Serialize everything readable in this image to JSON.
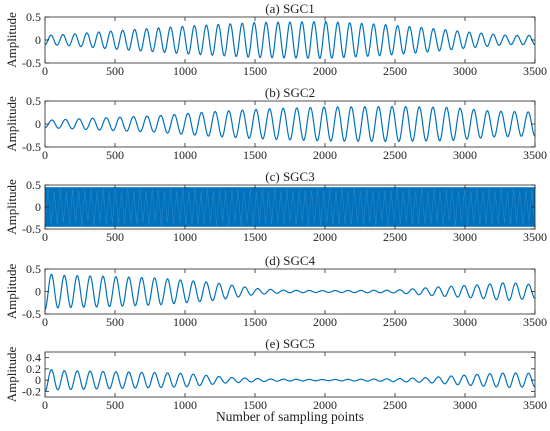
{
  "xlabel": "Number of sampling points",
  "colors": {
    "signal": "#0072BD",
    "axis": "#262626"
  },
  "chart_data": [
    {
      "type": "line",
      "title": "(a) SGC1",
      "ylabel": "Amplitude",
      "xlim": [
        0,
        3500
      ],
      "ylim": [
        -0.5,
        0.5
      ],
      "xticks": [
        "0",
        "500",
        "1000",
        "1500",
        "2000",
        "2500",
        "3000",
        "3500"
      ],
      "yticks": [
        "-0.5",
        "0",
        "0.5"
      ],
      "ytick_values": [
        -0.5,
        0,
        0.5
      ],
      "series": [
        {
          "cycles": 41,
          "envelope": {
            "x": [
              0,
              150,
              500,
              1000,
              1500,
              2000,
              2400,
              2700,
              3000,
              3300,
              3500
            ],
            "y": [
              0.1,
              0.12,
              0.2,
              0.3,
              0.38,
              0.4,
              0.34,
              0.27,
              0.18,
              0.1,
              0.1
            ]
          }
        }
      ]
    },
    {
      "type": "line",
      "title": "(b) SGC2",
      "ylabel": "Amplitude",
      "xlim": [
        0,
        3500
      ],
      "ylim": [
        -0.5,
        0.5
      ],
      "xticks": [
        "0",
        "500",
        "1000",
        "1500",
        "2000",
        "2500",
        "3000",
        "3500"
      ],
      "yticks": [
        "-0.5",
        "0",
        "0.5"
      ],
      "ytick_values": [
        -0.5,
        0,
        0.5
      ],
      "series": [
        {
          "cycles": 36,
          "envelope": {
            "x": [
              0,
              300,
              800,
              1200,
              1600,
              2000,
              2500,
              2900,
              3200,
              3500
            ],
            "y": [
              0.08,
              0.12,
              0.18,
              0.27,
              0.33,
              0.37,
              0.38,
              0.36,
              0.28,
              0.26
            ]
          }
        }
      ]
    },
    {
      "type": "line",
      "title": "(c) SGC3",
      "ylabel": "Amplitude",
      "xlim": [
        0,
        3500
      ],
      "ylim": [
        -0.5,
        0.5
      ],
      "xticks": [
        "0",
        "500",
        "1000",
        "1500",
        "2000",
        "2500",
        "3000",
        "3500"
      ],
      "yticks": [
        "-0.5",
        "0",
        "0.5"
      ],
      "ytick_values": [
        -0.5,
        0,
        0.5
      ],
      "series": [
        {
          "dense": true,
          "amplitude": 0.45
        }
      ]
    },
    {
      "type": "line",
      "title": "(d) SGC4",
      "ylabel": "Amplitude",
      "xlim": [
        0,
        3500
      ],
      "ylim": [
        -0.5,
        0.5
      ],
      "xticks": [
        "0",
        "500",
        "1000",
        "1500",
        "2000",
        "2500",
        "3000",
        "3500"
      ],
      "yticks": [
        "-0.5",
        "0",
        "0.5"
      ],
      "ytick_values": [
        -0.5,
        0,
        0.5
      ],
      "series": [
        {
          "cycles": 38,
          "envelope": {
            "x": [
              0,
              100,
              400,
              800,
              1200,
              1500,
              1700,
              2000,
              2500,
              2800,
              3100,
              3300,
              3500
            ],
            "y": [
              0.4,
              0.36,
              0.34,
              0.3,
              0.2,
              0.07,
              0.03,
              0.02,
              0.03,
              0.1,
              0.15,
              0.2,
              0.15
            ]
          }
        }
      ]
    },
    {
      "type": "line",
      "title": "(e) SGC5",
      "ylabel": "Amplitude",
      "xlim": [
        0,
        3500
      ],
      "ylim": [
        -0.3,
        0.5
      ],
      "xticks": [
        "0",
        "500",
        "1000",
        "1500",
        "2000",
        "2500",
        "3000",
        "3500"
      ],
      "yticks": [
        "-0.2",
        "0",
        "0.2",
        "0.4"
      ],
      "ytick_values": [
        -0.2,
        0,
        0.2,
        0.4
      ],
      "series": [
        {
          "cycles": 38,
          "envelope": {
            "x": [
              0,
              100,
              500,
              1000,
              1300,
              1600,
              2000,
              2400,
              2700,
              3000,
              3300,
              3500
            ],
            "y": [
              0.2,
              0.17,
              0.15,
              0.12,
              0.05,
              0.02,
              0.01,
              0.02,
              0.04,
              0.09,
              0.13,
              0.12
            ]
          }
        }
      ]
    }
  ]
}
